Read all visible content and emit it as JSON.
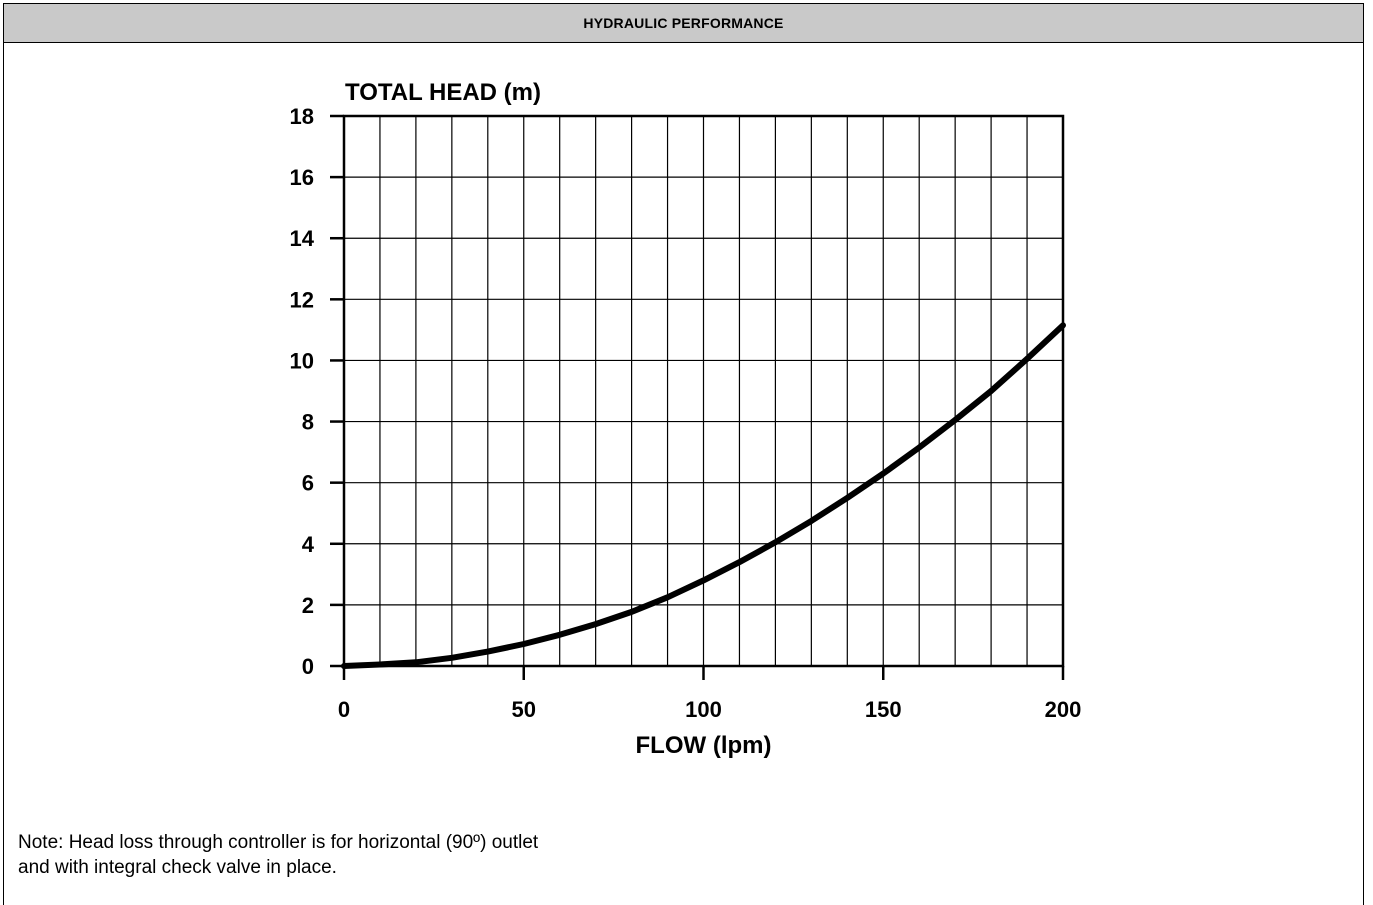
{
  "header": {
    "title": "HYDRAULIC PERFORMANCE"
  },
  "note": {
    "line1": "Note: Head loss through controller is for horizontal (90º) outlet",
    "line2": "and with integral check valve in place."
  },
  "chart_data": {
    "type": "line",
    "ylabel": "TOTAL HEAD (m)",
    "xlabel": "FLOW (lpm)",
    "xlim": [
      0,
      200
    ],
    "ylim": [
      0,
      18
    ],
    "x_ticks": [
      0,
      50,
      100,
      150,
      200
    ],
    "y_ticks": [
      0,
      2,
      4,
      6,
      8,
      10,
      12,
      14,
      16,
      18
    ],
    "grid": true,
    "x_grid_step": 10,
    "y_grid_step": 2,
    "series": [
      {
        "x": [
          0,
          10,
          20,
          30,
          40,
          50,
          60,
          70,
          80,
          90,
          100,
          110,
          120,
          130,
          140,
          150,
          160,
          170,
          180,
          190,
          200
        ],
        "y": [
          0.0,
          0.05,
          0.12,
          0.27,
          0.47,
          0.72,
          1.02,
          1.37,
          1.77,
          2.25,
          2.8,
          3.4,
          4.05,
          4.75,
          5.5,
          6.3,
          7.15,
          8.05,
          9.0,
          10.05,
          11.15
        ]
      }
    ],
    "line_color": "#000000"
  }
}
